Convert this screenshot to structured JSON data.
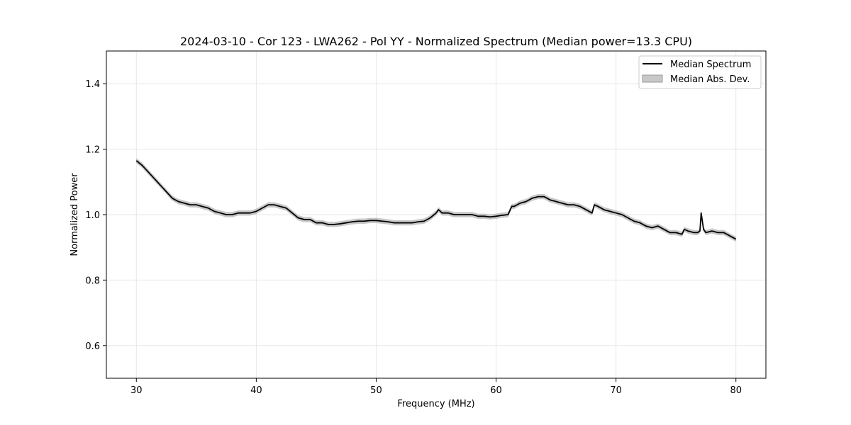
{
  "chart_data": {
    "type": "line",
    "title": "2024-03-10 - Cor 123 - LWA262 - Pol YY - Normalized Spectrum (Median power=13.3 CPU)",
    "xlabel": "Frequency (MHz)",
    "ylabel": "Normalized Power",
    "xlim": [
      27.5,
      82.5
    ],
    "ylim": [
      0.5,
      1.5
    ],
    "xticks": [
      30,
      40,
      50,
      60,
      70,
      80
    ],
    "yticks": [
      0.6,
      0.8,
      1.0,
      1.2,
      1.4
    ],
    "xtick_labels": [
      "30",
      "40",
      "50",
      "60",
      "70",
      "80"
    ],
    "ytick_labels": [
      "0.6",
      "0.8",
      "1.0",
      "1.2",
      "1.4"
    ],
    "grid": true,
    "legend_position": "top-right",
    "legend": [
      "Median Spectrum",
      "Median Abs. Dev."
    ],
    "colors": {
      "line": "#000000",
      "band": "#b0b0b0"
    },
    "series": [
      {
        "name": "Median Spectrum",
        "x": [
          30,
          30.5,
          31,
          31.5,
          32,
          32.5,
          33,
          33.5,
          34,
          34.5,
          35,
          35.5,
          36,
          36.5,
          37,
          37.5,
          38,
          38.5,
          39,
          39.5,
          40,
          40.5,
          41,
          41.5,
          42,
          42.5,
          43,
          43.5,
          44,
          44.5,
          45,
          45.5,
          46,
          46.5,
          47,
          47.5,
          48,
          48.5,
          49,
          49.5,
          50,
          50.5,
          51,
          51.5,
          52,
          52.5,
          53,
          53.5,
          54,
          54.5,
          55,
          55.2,
          55.5,
          56,
          56.5,
          57,
          57.5,
          58,
          58.5,
          59,
          59.5,
          60,
          60.5,
          61,
          61.3,
          61.5,
          62,
          62.5,
          63,
          63.5,
          64,
          64.5,
          65,
          65.5,
          66,
          66.5,
          67,
          67.5,
          68,
          68.2,
          68.5,
          69,
          69.5,
          70,
          70.5,
          71,
          71.5,
          72,
          72.5,
          73,
          73.5,
          74,
          74.5,
          75,
          75.5,
          75.7,
          76,
          76.5,
          76.8,
          77,
          77.1,
          77.3,
          77.5,
          78,
          78.5,
          79,
          79.5,
          80
        ],
        "y": [
          1.165,
          1.15,
          1.13,
          1.11,
          1.09,
          1.07,
          1.05,
          1.04,
          1.035,
          1.03,
          1.03,
          1.025,
          1.02,
          1.01,
          1.005,
          1.0,
          1.0,
          1.005,
          1.005,
          1.005,
          1.01,
          1.02,
          1.03,
          1.03,
          1.025,
          1.02,
          1.005,
          0.99,
          0.985,
          0.985,
          0.975,
          0.975,
          0.97,
          0.97,
          0.972,
          0.975,
          0.978,
          0.98,
          0.98,
          0.982,
          0.982,
          0.98,
          0.978,
          0.975,
          0.975,
          0.975,
          0.975,
          0.978,
          0.98,
          0.99,
          1.005,
          1.015,
          1.005,
          1.005,
          1.0,
          1.0,
          1.0,
          1.0,
          0.995,
          0.995,
          0.993,
          0.995,
          0.998,
          1.0,
          1.025,
          1.025,
          1.035,
          1.04,
          1.05,
          1.055,
          1.055,
          1.045,
          1.04,
          1.035,
          1.03,
          1.03,
          1.025,
          1.015,
          1.005,
          1.03,
          1.025,
          1.015,
          1.01,
          1.005,
          1.0,
          0.99,
          0.98,
          0.975,
          0.965,
          0.96,
          0.965,
          0.955,
          0.945,
          0.945,
          0.94,
          0.955,
          0.95,
          0.945,
          0.945,
          0.95,
          1.005,
          0.955,
          0.945,
          0.95,
          0.945,
          0.945,
          0.935,
          0.925
        ]
      },
      {
        "name": "Median Abs. Dev.",
        "halfwidth": 0.008
      }
    ]
  }
}
